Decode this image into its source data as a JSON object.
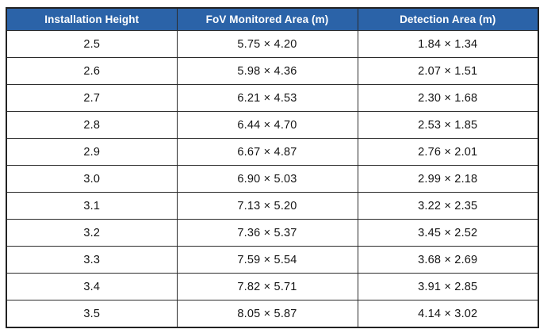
{
  "colors": {
    "header_bg": "#2b63a8",
    "header_text": "#ffffff",
    "border": "#2b2b2b",
    "cell_text": "#141414",
    "page_bg": "#ffffff"
  },
  "table": {
    "columns": [
      "Installation Height",
      "FoV Monitored Area (m)",
      "Detection Area (m)"
    ],
    "rows": [
      [
        "2.5",
        "5.75 × 4.20",
        "1.84 × 1.34"
      ],
      [
        "2.6",
        "5.98 × 4.36",
        "2.07 × 1.51"
      ],
      [
        "2.7",
        "6.21 × 4.53",
        "2.30 × 1.68"
      ],
      [
        "2.8",
        "6.44 × 4.70",
        "2.53 × 1.85"
      ],
      [
        "2.9",
        "6.67 × 4.87",
        "2.76 × 2.01"
      ],
      [
        "3.0",
        "6.90 × 5.03",
        "2.99 × 2.18"
      ],
      [
        "3.1",
        "7.13 × 5.20",
        "3.22 × 2.35"
      ],
      [
        "3.2",
        "7.36 × 5.37",
        "3.45 × 2.52"
      ],
      [
        "3.3",
        "7.59 × 5.54",
        "3.68 × 2.69"
      ],
      [
        "3.4",
        "7.82 × 5.71",
        "3.91 × 2.85"
      ],
      [
        "3.5",
        "8.05 × 5.87",
        "4.14 × 3.02"
      ]
    ]
  }
}
